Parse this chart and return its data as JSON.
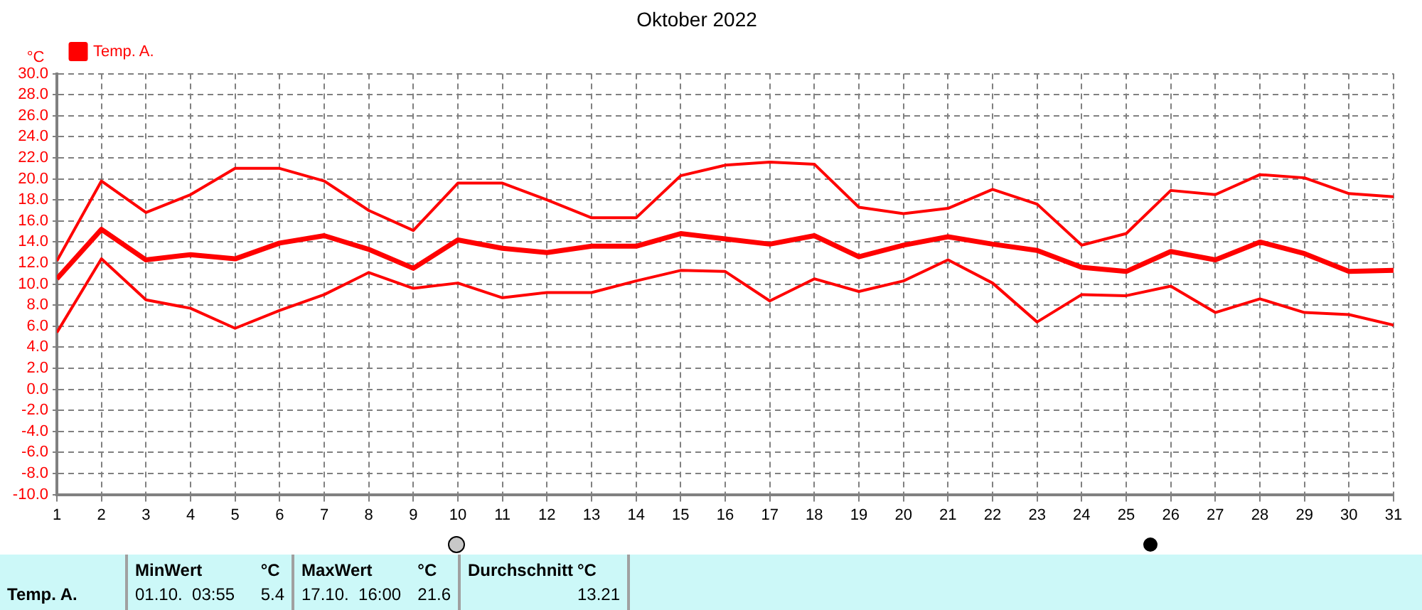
{
  "chart_data": {
    "type": "line",
    "title": "Oktober 2022",
    "ylabel": "°C",
    "x": [
      1,
      2,
      3,
      4,
      5,
      6,
      7,
      8,
      9,
      10,
      11,
      12,
      13,
      14,
      15,
      16,
      17,
      18,
      19,
      20,
      21,
      22,
      23,
      24,
      25,
      26,
      27,
      28,
      29,
      30,
      31
    ],
    "series": [
      {
        "color": "#ff0000",
        "values": [
          12.2,
          19.8,
          16.8,
          18.5,
          21.0,
          21.0,
          19.8,
          17.0,
          15.1,
          19.6,
          19.6,
          18.0,
          16.3,
          16.3,
          20.3,
          21.3,
          21.6,
          21.4,
          17.3,
          16.7,
          17.2,
          19.0,
          17.6,
          13.7,
          14.8,
          18.9,
          18.5,
          20.4,
          20.1,
          18.6,
          18.3
        ]
      },
      {
        "name": "Temp. A.",
        "color": "#ff0000",
        "values": [
          10.5,
          15.2,
          12.3,
          12.8,
          12.4,
          13.9,
          14.6,
          13.3,
          11.5,
          14.2,
          13.4,
          13.0,
          13.6,
          13.6,
          14.8,
          14.3,
          13.8,
          14.6,
          12.6,
          13.7,
          14.5,
          13.8,
          13.2,
          11.6,
          11.2,
          13.1,
          12.3,
          14.0,
          12.9,
          11.2,
          11.3
        ]
      },
      {
        "color": "#ff0000",
        "values": [
          5.4,
          12.4,
          8.5,
          7.7,
          5.8,
          7.5,
          9.0,
          11.1,
          9.6,
          10.1,
          8.7,
          9.2,
          9.2,
          10.3,
          11.3,
          11.2,
          8.4,
          10.5,
          9.3,
          10.3,
          12.3,
          10.1,
          6.4,
          9.0,
          8.9,
          9.8,
          7.3,
          8.6,
          7.3,
          7.1,
          6.1
        ]
      }
    ],
    "xlim": [
      1,
      31
    ],
    "xticks": [
      1,
      2,
      3,
      4,
      5,
      6,
      7,
      8,
      9,
      10,
      11,
      12,
      13,
      14,
      15,
      16,
      17,
      18,
      19,
      20,
      21,
      22,
      23,
      24,
      25,
      26,
      27,
      28,
      29,
      30,
      31
    ],
    "ylim": [
      -10,
      30
    ],
    "yticks": [
      {
        "value": -10,
        "label": "-10.0"
      },
      {
        "value": -8,
        "label": "-8.0"
      },
      {
        "value": -6,
        "label": "-6.0"
      },
      {
        "value": -4,
        "label": "-4.0"
      },
      {
        "value": -2,
        "label": "-2.0"
      },
      {
        "value": 0,
        "label": "0.0"
      },
      {
        "value": 2,
        "label": "2.0"
      },
      {
        "value": 4,
        "label": "4.0"
      },
      {
        "value": 6,
        "label": "6.0"
      },
      {
        "value": 8,
        "label": "8.0"
      },
      {
        "value": 10,
        "label": "10.0"
      },
      {
        "value": 12,
        "label": "12.0"
      },
      {
        "value": 14,
        "label": "14.0"
      },
      {
        "value": 16,
        "label": "16.0"
      },
      {
        "value": 18,
        "label": "18.0"
      },
      {
        "value": 20,
        "label": "20.0"
      },
      {
        "value": 22,
        "label": "22.0"
      },
      {
        "value": 24,
        "label": "24.0"
      },
      {
        "value": 26,
        "label": "26.0"
      },
      {
        "value": 28,
        "label": "28.0"
      },
      {
        "value": 30,
        "label": "30.0"
      }
    ],
    "grid": true,
    "legend": "top left",
    "marker": "none",
    "line_style": "solid",
    "annotations": [
      "Temp. A.",
      "MinWert",
      "°C",
      "01.10.  03:55",
      "5.4",
      "MaxWert",
      "°C",
      "17.10.  16:00",
      "21.6",
      "Durchschnitt",
      "°C",
      "13.21"
    ]
  }
}
